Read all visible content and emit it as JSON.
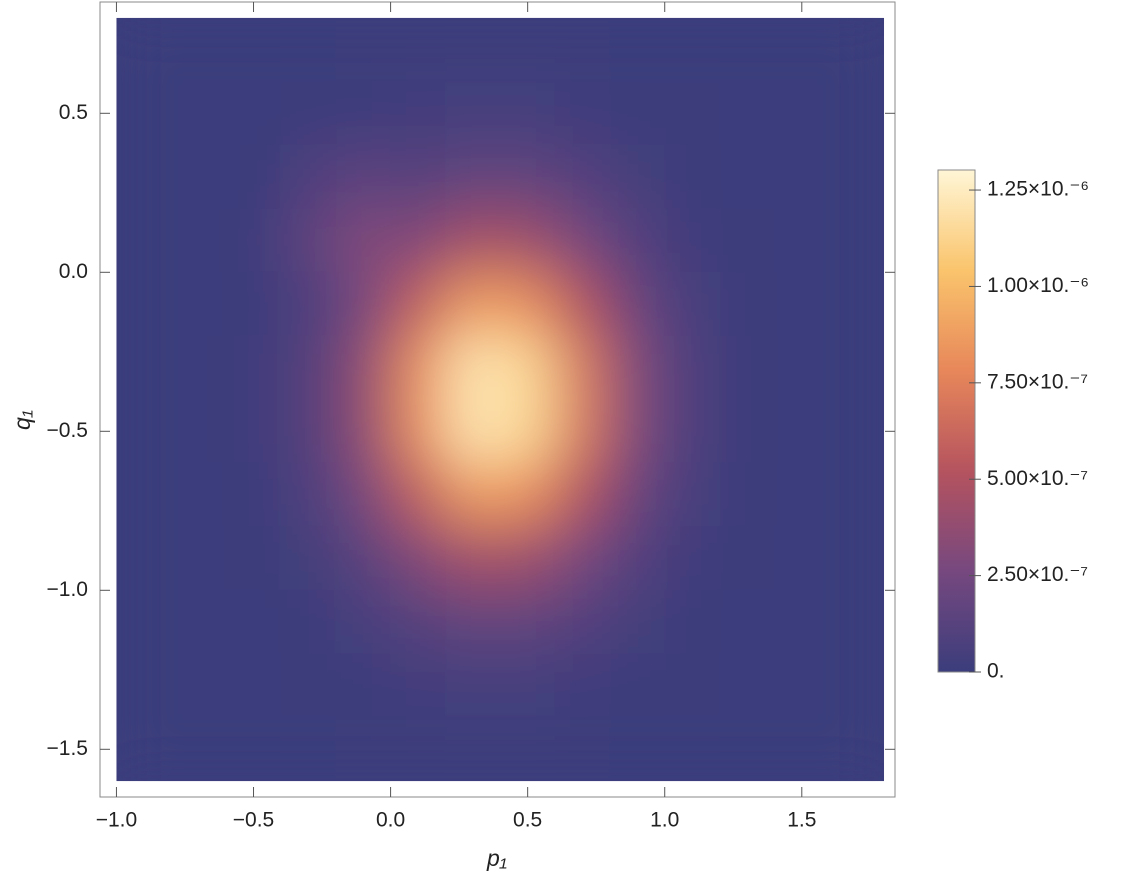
{
  "chart_data": {
    "type": "heatmap",
    "x_label": "p₁",
    "y_label": "q₁",
    "x": [
      -0.9,
      -0.7,
      -0.5,
      -0.3,
      -0.1,
      0.1,
      0.3,
      0.5,
      0.7,
      0.9,
      1.1,
      1.3,
      1.5,
      1.7
    ],
    "y": [
      0.7,
      0.5,
      0.3,
      0.1,
      -0.1,
      -0.3,
      -0.5,
      -0.7,
      -0.9,
      -1.1,
      -1.3,
      -1.5
    ],
    "z": [
      [
        0,
        0,
        0,
        0,
        3e-09,
        6e-09,
        9e-09,
        8e-09,
        5e-09,
        2e-09,
        0,
        0,
        0,
        0
      ],
      [
        0,
        0,
        1e-09,
        4e-09,
        1.3e-08,
        3.1e-08,
        4.6e-08,
        4.4e-08,
        2.7e-08,
        1.1e-08,
        3e-09,
        0,
        0,
        0
      ],
      [
        0,
        0,
        2e-09,
        8e-08,
        1.5e-07,
        1.14e-07,
        1.7e-07,
        1.62e-07,
        1e-07,
        3.9e-08,
        1e-08,
        2e-09,
        0,
        0
      ],
      [
        0,
        1e-09,
        7e-09,
        1.5e-07,
        3e-07,
        3e-07,
        4.5e-07,
        4.3e-07,
        2.6e-07,
        1e-07,
        2.6e-08,
        4e-09,
        0,
        0
      ],
      [
        0,
        1e-09,
        1.3e-08,
        6.9e-08,
        2.5e-07,
        5.8e-07,
        8.7e-07,
        8.3e-07,
        5.1e-07,
        2e-07,
        5e-08,
        8e-09,
        1e-09,
        0
      ],
      [
        0,
        2e-09,
        1.8e-08,
        9.6e-08,
        3.5e-07,
        8.1e-07,
        1.21e-06,
        1.15e-06,
        7.1e-07,
        2.8e-07,
        7e-08,
        1.1e-08,
        1e-09,
        0
      ],
      [
        0,
        2e-09,
        1.8e-08,
        9.6e-08,
        3.5e-07,
        8.1e-07,
        1.21e-06,
        1.15e-06,
        7.1e-07,
        2.8e-07,
        7e-08,
        1.1e-08,
        1e-09,
        0
      ],
      [
        0,
        1e-09,
        1.3e-08,
        6.9e-08,
        2.5e-07,
        5.8e-07,
        8.7e-07,
        8.3e-07,
        5.1e-07,
        2e-07,
        5e-08,
        8e-09,
        1e-09,
        0
      ],
      [
        0,
        1e-09,
        7e-09,
        3.6e-08,
        1.3e-07,
        3e-07,
        4.5e-07,
        4.3e-07,
        2.6e-07,
        1e-07,
        2.6e-08,
        4e-09,
        0,
        0
      ],
      [
        0,
        0,
        2e-09,
        1.4e-08,
        4.9e-08,
        1.14e-07,
        1.7e-07,
        1.62e-07,
        1e-07,
        3.9e-08,
        1e-08,
        2e-09,
        0,
        0
      ],
      [
        0,
        0,
        1e-09,
        4e-09,
        1.3e-08,
        3.1e-08,
        4.6e-08,
        4.4e-08,
        2.7e-08,
        1.1e-08,
        3e-09,
        0,
        0,
        0
      ],
      [
        0,
        0,
        0,
        0,
        3e-09,
        6e-09,
        9e-09,
        8e-09,
        5e-09,
        2e-09,
        0,
        0,
        0,
        0
      ]
    ],
    "xlim": [
      -1.06,
      1.84
    ],
    "ylim": [
      -1.65,
      0.85
    ],
    "xticks": [
      {
        "value": -1,
        "label": "−1.0"
      },
      {
        "value": -0.5,
        "label": "−0.5"
      },
      {
        "value": 0,
        "label": "0.0"
      },
      0.5,
      {
        "value": 1,
        "label": "1.0"
      },
      1.5
    ],
    "yticks": [
      {
        "value": -1.5,
        "label": "−1.5"
      },
      {
        "value": -1,
        "label": "−1.0"
      },
      {
        "value": -0.5,
        "label": "−0.5"
      },
      {
        "value": 0,
        "label": "0.0"
      },
      0.5
    ],
    "zlim": [
      0,
      1.302e-06
    ],
    "zticks": [
      {
        "value": 0,
        "label": "0."
      },
      {
        "value": 2.5e-07,
        "label": "2.50×10.⁻⁷"
      },
      {
        "value": 5e-07,
        "label": "5.00×10.⁻⁷"
      },
      {
        "value": 7.5e-07,
        "label": "7.50×10.⁻⁷"
      },
      {
        "value": 1e-06,
        "label": "1.00×10.⁻⁶"
      },
      {
        "value": 1.25e-06,
        "label": "1.25×10.⁻⁶"
      }
    ],
    "colorscale": [
      "#3b3d7c",
      "#76487f",
      "#b5535f",
      "#e7875a",
      "#fac46c",
      "#fff6d6"
    ]
  }
}
